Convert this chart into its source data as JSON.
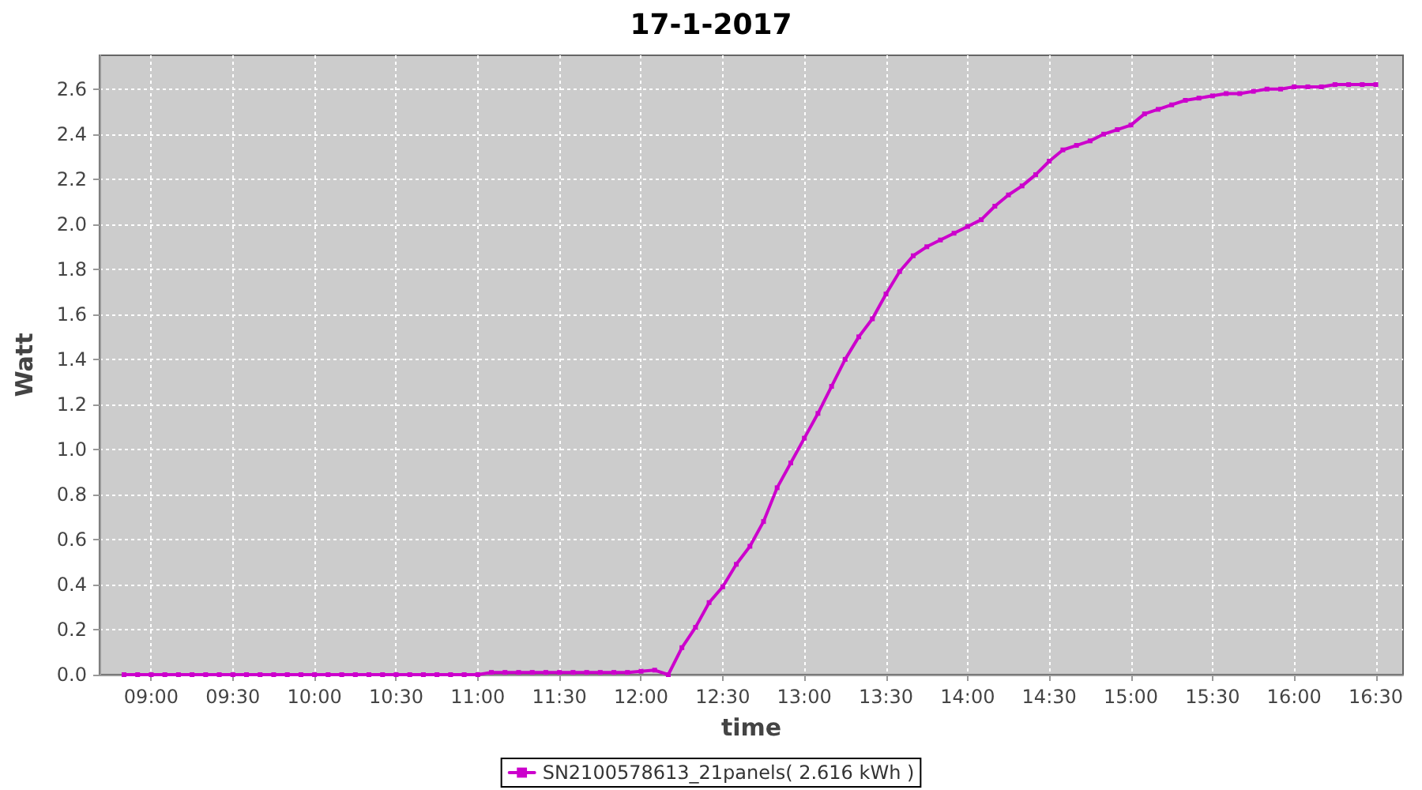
{
  "chart_data": {
    "type": "line",
    "title": "17-1-2017",
    "xlabel": "time",
    "ylabel": "Watt",
    "x": [
      "2017-01-17T08:50",
      "2017-01-17T08:55",
      "2017-01-17T09:00",
      "2017-01-17T09:05",
      "2017-01-17T09:10",
      "2017-01-17T09:15",
      "2017-01-17T09:20",
      "2017-01-17T09:25",
      "2017-01-17T09:30",
      "2017-01-17T09:35",
      "2017-01-17T09:40",
      "2017-01-17T09:45",
      "2017-01-17T09:50",
      "2017-01-17T09:55",
      "2017-01-17T10:00",
      "2017-01-17T10:05",
      "2017-01-17T10:10",
      "2017-01-17T10:15",
      "2017-01-17T10:20",
      "2017-01-17T10:25",
      "2017-01-17T10:30",
      "2017-01-17T10:35",
      "2017-01-17T10:40",
      "2017-01-17T10:45",
      "2017-01-17T10:50",
      "2017-01-17T10:55",
      "2017-01-17T11:00",
      "2017-01-17T11:05",
      "2017-01-17T11:10",
      "2017-01-17T11:15",
      "2017-01-17T11:20",
      "2017-01-17T11:25",
      "2017-01-17T11:30",
      "2017-01-17T11:35",
      "2017-01-17T11:40",
      "2017-01-17T11:45",
      "2017-01-17T11:50",
      "2017-01-17T11:55",
      "2017-01-17T12:00",
      "2017-01-17T12:05",
      "2017-01-17T12:10",
      "2017-01-17T12:15",
      "2017-01-17T12:20",
      "2017-01-17T12:25",
      "2017-01-17T12:30",
      "2017-01-17T12:35",
      "2017-01-17T12:40",
      "2017-01-17T12:45",
      "2017-01-17T12:50",
      "2017-01-17T12:55",
      "2017-01-17T13:00",
      "2017-01-17T13:05",
      "2017-01-17T13:10",
      "2017-01-17T13:15",
      "2017-01-17T13:20",
      "2017-01-17T13:25",
      "2017-01-17T13:30",
      "2017-01-17T13:35",
      "2017-01-17T13:40",
      "2017-01-17T13:45",
      "2017-01-17T13:50",
      "2017-01-17T13:55",
      "2017-01-17T14:00",
      "2017-01-17T14:05",
      "2017-01-17T14:10",
      "2017-01-17T14:15",
      "2017-01-17T14:20",
      "2017-01-17T14:25",
      "2017-01-17T14:30",
      "2017-01-17T14:35",
      "2017-01-17T14:40",
      "2017-01-17T14:45",
      "2017-01-17T14:50",
      "2017-01-17T14:55",
      "2017-01-17T15:00",
      "2017-01-17T15:05",
      "2017-01-17T15:10",
      "2017-01-17T15:15",
      "2017-01-17T15:20",
      "2017-01-17T15:25",
      "2017-01-17T15:30",
      "2017-01-17T15:35",
      "2017-01-17T15:40",
      "2017-01-17T15:45",
      "2017-01-17T15:50",
      "2017-01-17T15:55",
      "2017-01-17T16:00",
      "2017-01-17T16:05",
      "2017-01-17T16:10",
      "2017-01-17T16:15",
      "2017-01-17T16:20",
      "2017-01-17T16:25",
      "2017-01-17T16:30"
    ],
    "series": [
      {
        "name": "SN2100578613_21panels( 2.616 kWh )",
        "color": "#cc00cc",
        "values": [
          0,
          0,
          0,
          0,
          0,
          0,
          0,
          0,
          0,
          0,
          0,
          0,
          0,
          0,
          0,
          0,
          0,
          0,
          0,
          0,
          0,
          0,
          0,
          0,
          0,
          0,
          0,
          0.01,
          0.01,
          0.01,
          0.01,
          0.01,
          0.01,
          0.01,
          0.01,
          0.01,
          0.01,
          0.01,
          0.015,
          0.02,
          0,
          0.12,
          0.21,
          0.32,
          0.39,
          0.49,
          0.57,
          0.68,
          0.83,
          0.94,
          1.05,
          1.16,
          1.28,
          1.4,
          1.5,
          1.58,
          1.69,
          1.79,
          1.86,
          1.9,
          1.93,
          1.96,
          1.99,
          2.02,
          2.08,
          2.13,
          2.17,
          2.22,
          2.28,
          2.33,
          2.35,
          2.37,
          2.4,
          2.42,
          2.44,
          2.49,
          2.51,
          2.53,
          2.55,
          2.56,
          2.57,
          2.58,
          2.58,
          2.59,
          2.6,
          2.6,
          2.61,
          2.61,
          2.61,
          2.62,
          2.62,
          2.62,
          2.62
        ]
      }
    ],
    "xlim": [
      "2017-01-17T08:41",
      "2017-01-17T16:40"
    ],
    "xticks": [
      {
        "value": "2017-01-17T09:00",
        "label": "09:00"
      },
      {
        "value": "2017-01-17T09:30",
        "label": "09:30"
      },
      {
        "value": "2017-01-17T10:00",
        "label": "10:00"
      },
      {
        "value": "2017-01-17T10:30",
        "label": "10:30"
      },
      {
        "value": "2017-01-17T11:00",
        "label": "11:00"
      },
      {
        "value": "2017-01-17T11:30",
        "label": "11:30"
      },
      {
        "value": "2017-01-17T12:00",
        "label": "12:00"
      },
      {
        "value": "2017-01-17T12:30",
        "label": "12:30"
      },
      {
        "value": "2017-01-17T13:00",
        "label": "13:00"
      },
      {
        "value": "2017-01-17T13:30",
        "label": "13:30"
      },
      {
        "value": "2017-01-17T14:00",
        "label": "14:00"
      },
      {
        "value": "2017-01-17T14:30",
        "label": "14:30"
      },
      {
        "value": "2017-01-17T15:00",
        "label": "15:00"
      },
      {
        "value": "2017-01-17T15:30",
        "label": "15:30"
      },
      {
        "value": "2017-01-17T16:00",
        "label": "16:00"
      },
      {
        "value": "2017-01-17T16:30",
        "label": "16:30"
      }
    ],
    "ylim": [
      0,
      2.75
    ],
    "yticks": [
      {
        "value": 0,
        "label": "0.0"
      },
      0.2,
      0.4,
      0.6,
      0.8,
      {
        "value": 1,
        "label": "1.0"
      },
      1.2,
      1.4,
      1.6,
      1.8,
      {
        "value": 2,
        "label": "2.0"
      },
      2.2,
      2.4,
      2.6
    ],
    "grid": true,
    "legend": "bottom",
    "marker": "square",
    "line_style": "solid"
  }
}
